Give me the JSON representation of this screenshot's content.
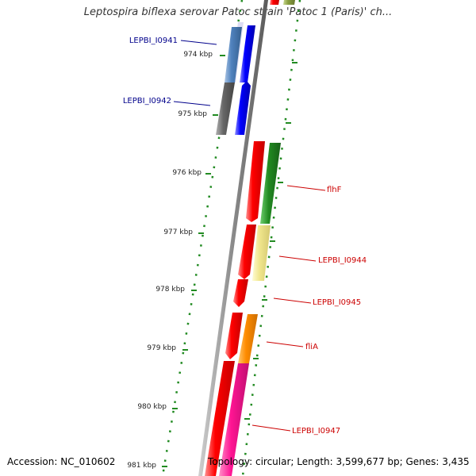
{
  "map": {
    "title": "Leptospira biflexa serovar Patoc strain 'Patoc 1 (Paris)' ch...",
    "accession": "Accession: NC_010602",
    "summary": "Topology: circular; Length: 3,599,677 bp; Genes: 3,435"
  },
  "ruler": {
    "unit": "kbp",
    "ticks": [
      "974 kbp",
      "975 kbp",
      "976 kbp",
      "977 kbp",
      "978 kbp",
      "979 kbp",
      "980 kbp",
      "981 kbp"
    ]
  },
  "genes": [
    {
      "id": "LEPBI_I0941",
      "strand": "reverse",
      "color": "#4f81bd"
    },
    {
      "id": "LEPBI_I0942",
      "strand": "reverse",
      "color": "#666666"
    },
    {
      "id": "flhF",
      "strand": "forward",
      "color": "#228b22"
    },
    {
      "id": "LEPBI_I0944",
      "strand": "forward",
      "color": "#f0e68c"
    },
    {
      "id": "LEPBI_I0945",
      "strand": "forward",
      "color": "#ff0000"
    },
    {
      "id": "fliA",
      "strand": "forward",
      "color": "#ff8c00"
    },
    {
      "id": "LEPBI_I0947",
      "strand": "forward",
      "color": "#ff1493"
    }
  ],
  "colors": {
    "left_label": "#00008b",
    "right_label": "#cc0000",
    "ruler_tick": "#228b22",
    "backbone": "#999999"
  }
}
